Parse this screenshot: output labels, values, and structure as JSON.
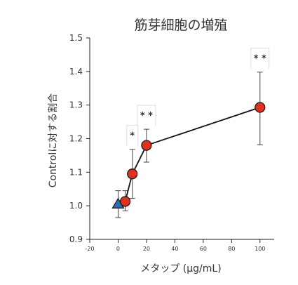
{
  "chart_data": {
    "type": "scatter",
    "title": "筋芽細胞の増殖",
    "xlabel": "メタップ (μg/mL)",
    "ylabel": "Controlに対する割合",
    "xlim": [
      -20,
      110
    ],
    "ylim": [
      0.9,
      1.5
    ],
    "xticks": [
      -20,
      0,
      20,
      40,
      60,
      80,
      100
    ],
    "yticks": [
      0.9,
      1.0,
      1.1,
      1.2,
      1.3,
      1.4,
      1.5
    ],
    "xtick_labels": [
      "-20",
      "0",
      "20",
      "40",
      "60",
      "80",
      "100"
    ],
    "ytick_labels": [
      "0.9",
      "1.0",
      "1.1",
      "1.2",
      "1.3",
      "1.4",
      "1.5"
    ],
    "grid": false,
    "series": [
      {
        "marker": "triangle",
        "color": "#2f6fb3",
        "connected": false,
        "points": [
          {
            "x": 0,
            "y": 1.005,
            "err_low": 0.965,
            "err_high": 1.045
          }
        ]
      },
      {
        "marker": "circle",
        "color": "#e0301e",
        "connected": true,
        "points": [
          {
            "x": 5,
            "y": 1.013,
            "err_low": 0.985,
            "err_high": 1.045
          },
          {
            "x": 10,
            "y": 1.095,
            "err_low": 1.022,
            "err_high": 1.168
          },
          {
            "x": 20,
            "y": 1.18,
            "err_low": 1.13,
            "err_high": 1.228
          },
          {
            "x": 100,
            "y": 1.293,
            "err_low": 1.182,
            "err_high": 1.398
          }
        ]
      }
    ],
    "annotations": [
      {
        "text": "*",
        "x": 10,
        "y": 1.208
      },
      {
        "text": "* *",
        "x": 20,
        "y": 1.268
      },
      {
        "text": "* *",
        "x": 100,
        "y": 1.438
      }
    ]
  }
}
